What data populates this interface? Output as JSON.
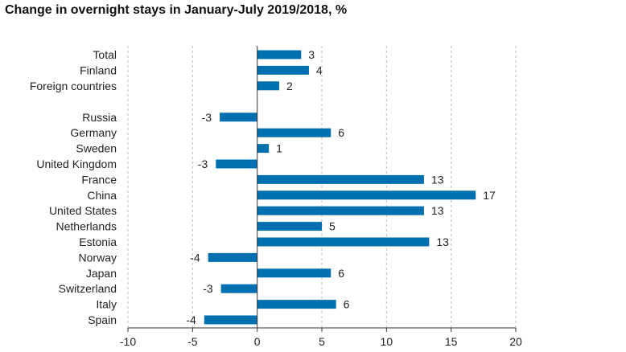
{
  "title": "Change in overnight stays in January-July 2019/2018, %",
  "colors": {
    "bar": "#0070b0",
    "grid": "#bdbdbd",
    "axis": "#333333",
    "text": "#222222"
  },
  "chart_data": {
    "type": "bar",
    "orientation": "horizontal",
    "title": "Change in overnight stays in January-July 2019/2018, %",
    "categories": [
      "Total",
      "Finland",
      "Foreign countries",
      "Russia",
      "Germany",
      "Sweden",
      "United Kingdom",
      "France",
      "China",
      "United States",
      "Netherlands",
      "Estonia",
      "Norway",
      "Japan",
      "Switzerland",
      "Italy",
      "Spain"
    ],
    "values": [
      3.4,
      4.0,
      1.7,
      -2.9,
      5.7,
      0.9,
      -3.2,
      12.9,
      16.9,
      12.9,
      5.0,
      13.3,
      -3.8,
      5.7,
      -2.8,
      6.1,
      -4.1
    ],
    "value_labels": [
      "3",
      "4",
      "2",
      "-3",
      "6",
      "1",
      "-3",
      "13",
      "17",
      "13",
      "5",
      "13",
      "-4",
      "6",
      "-3",
      "6",
      "-4"
    ],
    "group_break_after": "Foreign countries",
    "xlim": [
      -10,
      20
    ],
    "xticks": [
      -10,
      -5,
      0,
      5,
      10,
      15,
      20
    ],
    "grid": "vertical dashed",
    "legend": "none"
  }
}
